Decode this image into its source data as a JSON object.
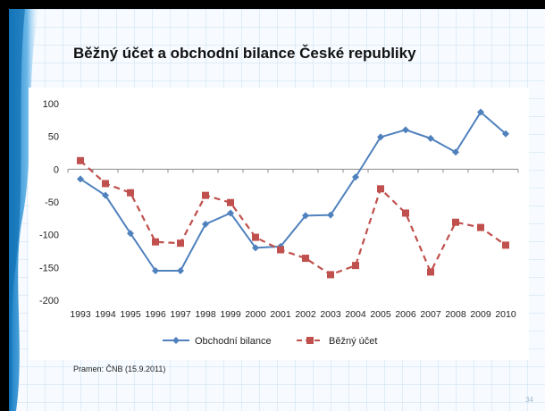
{
  "slide": {
    "title": "Běžný účet a obchodní bilance České republiky",
    "source": "Pramen: ČNB (15.9.2011)",
    "page_number": "34"
  },
  "chart_data": {
    "type": "line",
    "categories": [
      "1993",
      "1994",
      "1995",
      "1996",
      "1997",
      "1998",
      "1999",
      "2000",
      "2001",
      "2002",
      "2003",
      "2004",
      "2005",
      "2006",
      "2007",
      "2008",
      "2009",
      "2010"
    ],
    "ylim": [
      -200,
      100
    ],
    "yticks": [
      100,
      50,
      0,
      -50,
      -100,
      -150,
      -200
    ],
    "title": "",
    "xlabel": "",
    "ylabel": "",
    "legend_position": "bottom",
    "series": [
      {
        "name": "Obchodní bilance",
        "color": "#4f81bd",
        "style": "solid",
        "marker": "diamond",
        "values": [
          -15,
          -40,
          -98,
          -155,
          -155,
          -84,
          -67,
          -120,
          -118,
          -71,
          -70,
          -12,
          49,
          60,
          47,
          26,
          87,
          54
        ]
      },
      {
        "name": "Běžný účet",
        "color": "#c0504d",
        "style": "dashed",
        "marker": "square",
        "values": [
          13,
          -22,
          -36,
          -111,
          -113,
          -40,
          -51,
          -104,
          -123,
          -136,
          -161,
          -147,
          -30,
          -67,
          -157,
          -81,
          -89,
          -116
        ]
      }
    ]
  }
}
